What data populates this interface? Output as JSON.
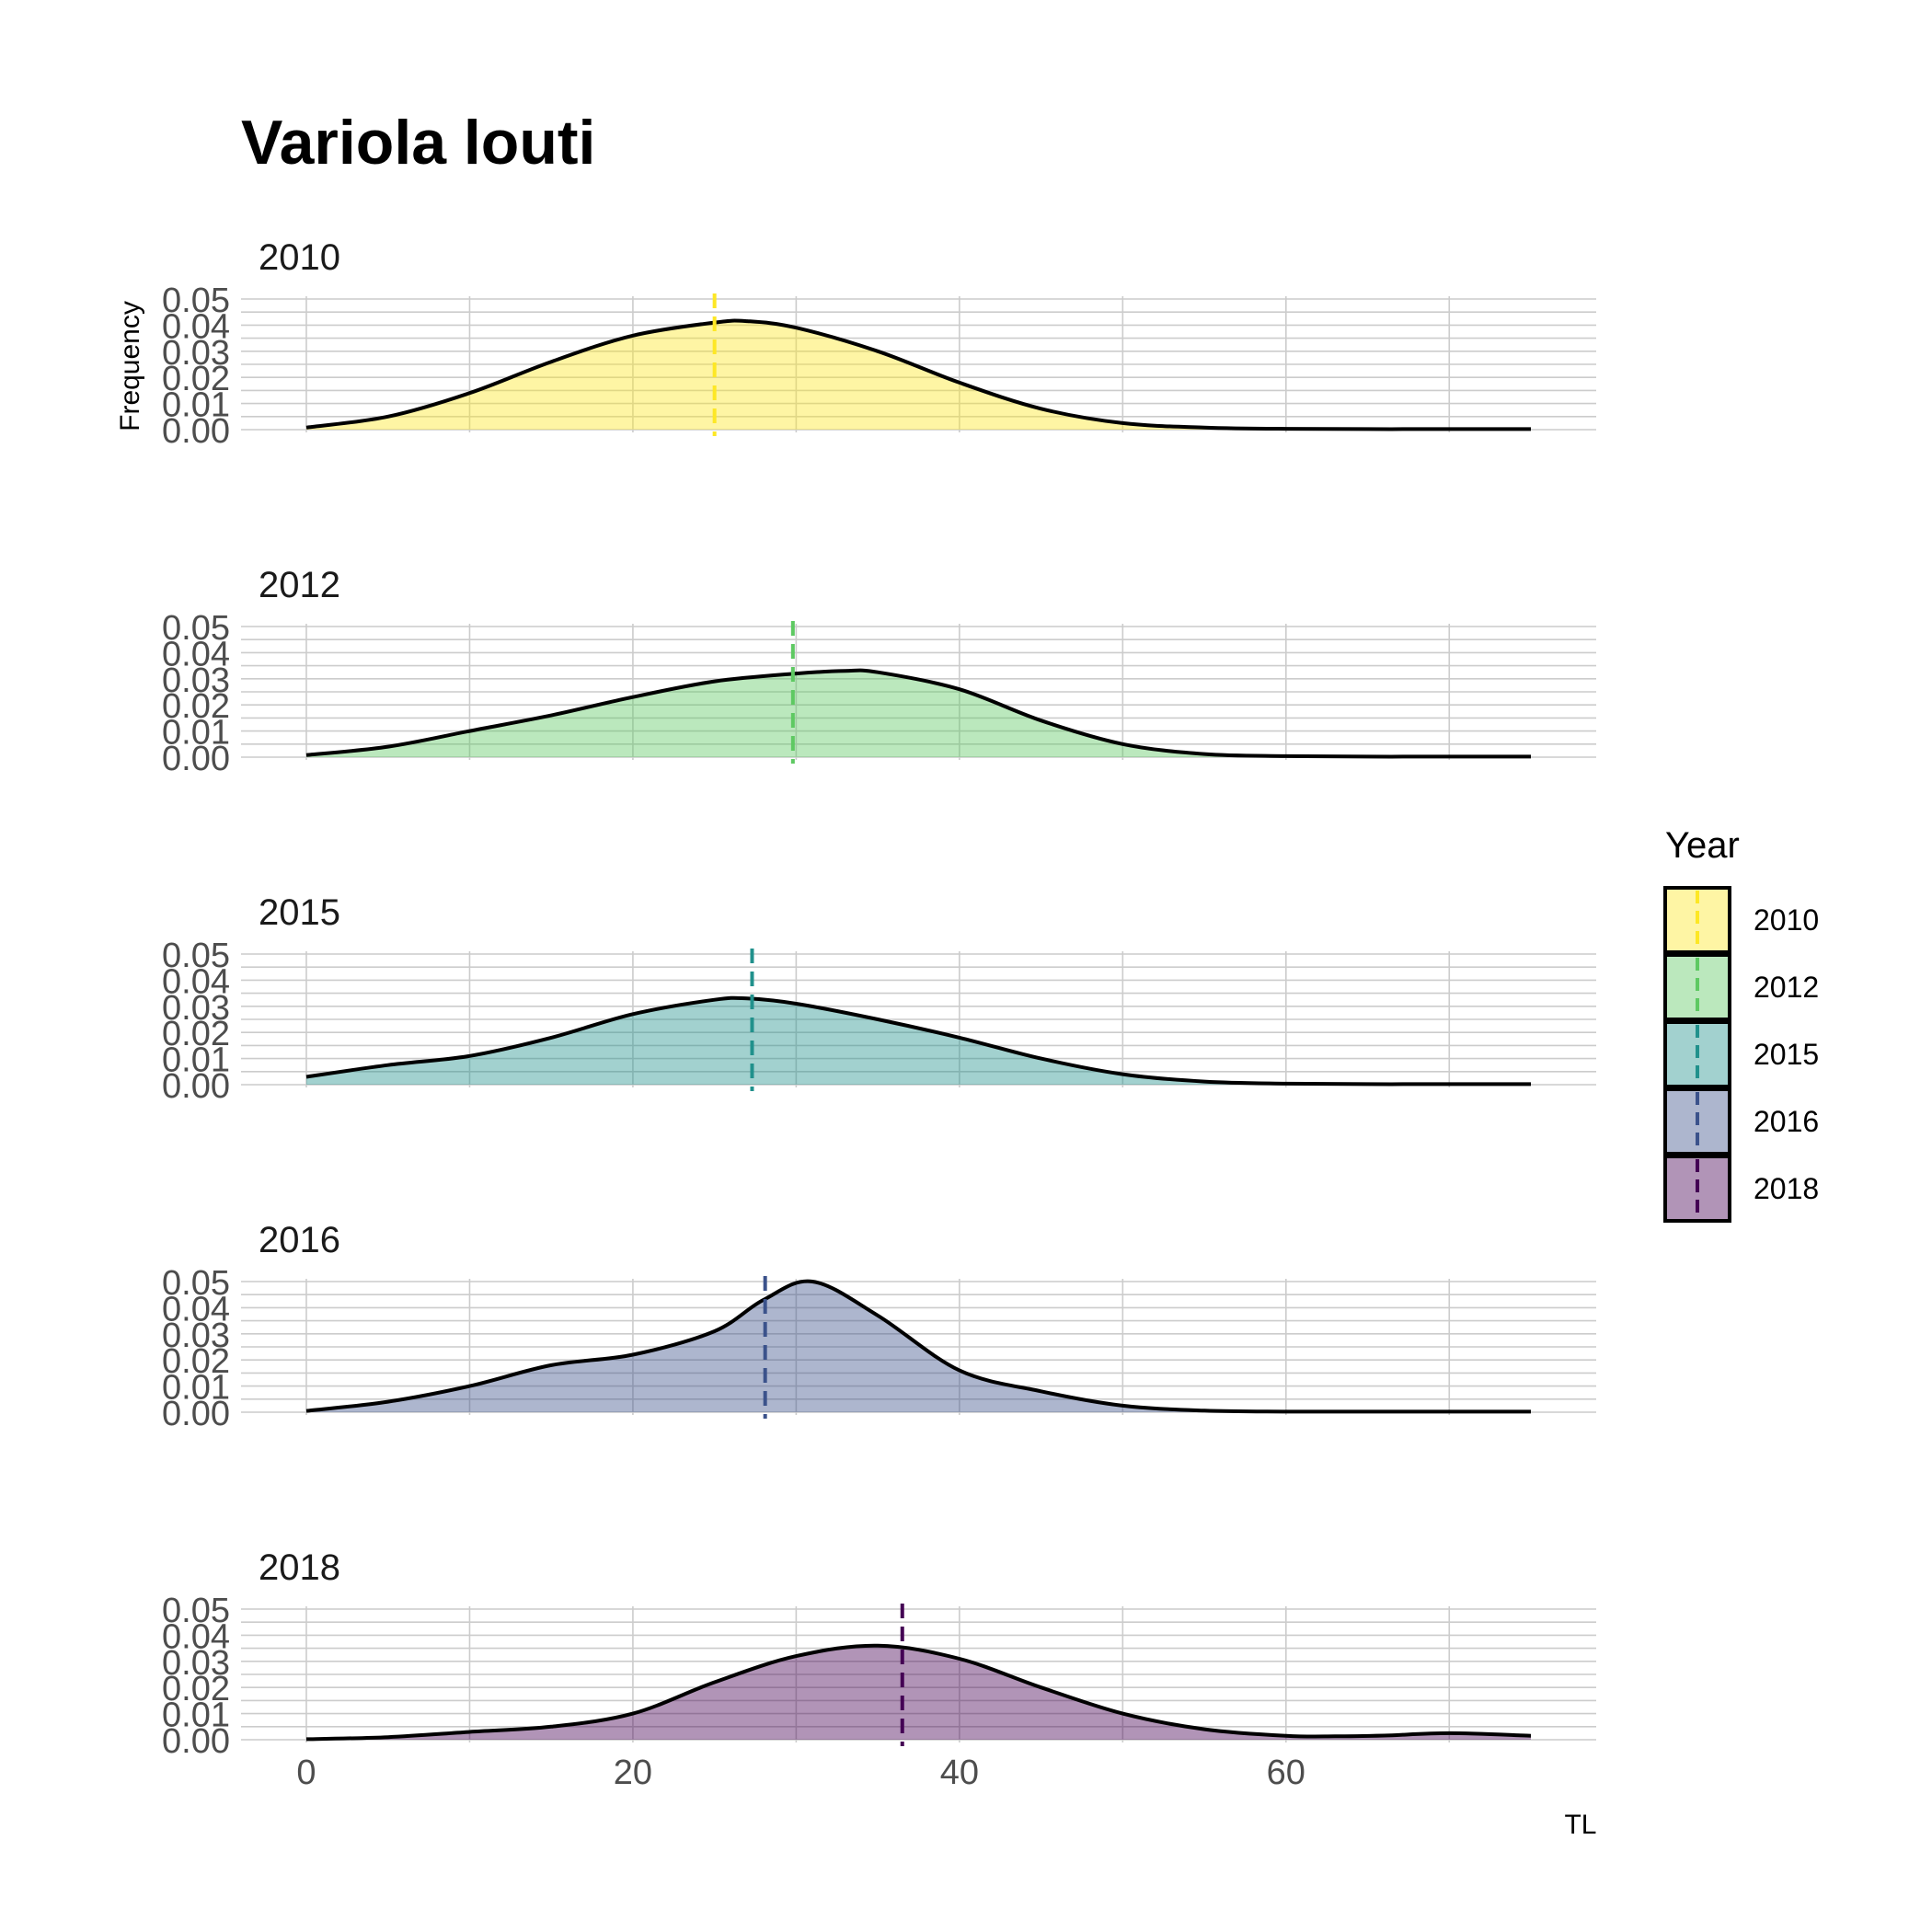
{
  "chart_data": {
    "type": "area",
    "title": "Variola louti",
    "xlabel": "TL",
    "ylabel": "Frequency",
    "xlim": [
      -4,
      79
    ],
    "ylim": [
      0,
      0.05
    ],
    "x_ticks": [
      0,
      20,
      40,
      60
    ],
    "y_ticks": [
      "0.00",
      "0.01",
      "0.02",
      "0.03",
      "0.04",
      "0.05"
    ],
    "grid": true,
    "legend": {
      "title": "Year",
      "placement": "right"
    },
    "series": [
      {
        "name": "2010",
        "facet_title": "2010",
        "color": "#FDE725",
        "mean_line": 25,
        "x": [
          0,
          5,
          10,
          15,
          20,
          25,
          27,
          30,
          35,
          40,
          45,
          50,
          55,
          60,
          65,
          70,
          75
        ],
        "y": [
          0.0008,
          0.005,
          0.014,
          0.026,
          0.036,
          0.041,
          0.0415,
          0.039,
          0.03,
          0.018,
          0.008,
          0.0025,
          0.0008,
          0.0003,
          0.0002,
          0.0002,
          0.0002
        ]
      },
      {
        "name": "2012",
        "facet_title": "2012",
        "color": "#5EC962",
        "mean_line": 29.8,
        "x": [
          0,
          5,
          10,
          15,
          20,
          25,
          30,
          33,
          35,
          40,
          45,
          50,
          55,
          60,
          65,
          70,
          75
        ],
        "y": [
          0.0008,
          0.004,
          0.01,
          0.016,
          0.023,
          0.029,
          0.032,
          0.033,
          0.0325,
          0.026,
          0.014,
          0.005,
          0.0012,
          0.0004,
          0.0002,
          0.0002,
          0.0002
        ]
      },
      {
        "name": "2015",
        "facet_title": "2015",
        "color": "#21918C",
        "mean_line": 27.3,
        "x": [
          0,
          5,
          10,
          15,
          20,
          25,
          27,
          30,
          35,
          40,
          45,
          50,
          55,
          60,
          65,
          70,
          75
        ],
        "y": [
          0.003,
          0.0075,
          0.011,
          0.018,
          0.027,
          0.0325,
          0.033,
          0.031,
          0.025,
          0.018,
          0.01,
          0.004,
          0.0012,
          0.0004,
          0.0002,
          0.0002,
          0.0002
        ]
      },
      {
        "name": "2016",
        "facet_title": "2016",
        "color": "#3B528B",
        "mean_line": 28.1,
        "x": [
          0,
          5,
          10,
          15,
          20,
          25,
          28,
          31,
          35,
          40,
          45,
          50,
          55,
          60,
          65,
          70,
          75
        ],
        "y": [
          0.0005,
          0.004,
          0.01,
          0.018,
          0.022,
          0.031,
          0.043,
          0.05,
          0.037,
          0.016,
          0.008,
          0.0025,
          0.0006,
          0.0002,
          0.0002,
          0.0002,
          0.0002
        ]
      },
      {
        "name": "2018",
        "facet_title": "2018",
        "color": "#440154",
        "mean_line": 36.5,
        "x": [
          0,
          5,
          10,
          15,
          20,
          25,
          30,
          35,
          40,
          45,
          50,
          55,
          60,
          63,
          66,
          70,
          75
        ],
        "y": [
          0.0002,
          0.001,
          0.003,
          0.005,
          0.01,
          0.022,
          0.032,
          0.036,
          0.031,
          0.02,
          0.01,
          0.004,
          0.0015,
          0.0013,
          0.0016,
          0.0025,
          0.0015
        ]
      }
    ]
  }
}
